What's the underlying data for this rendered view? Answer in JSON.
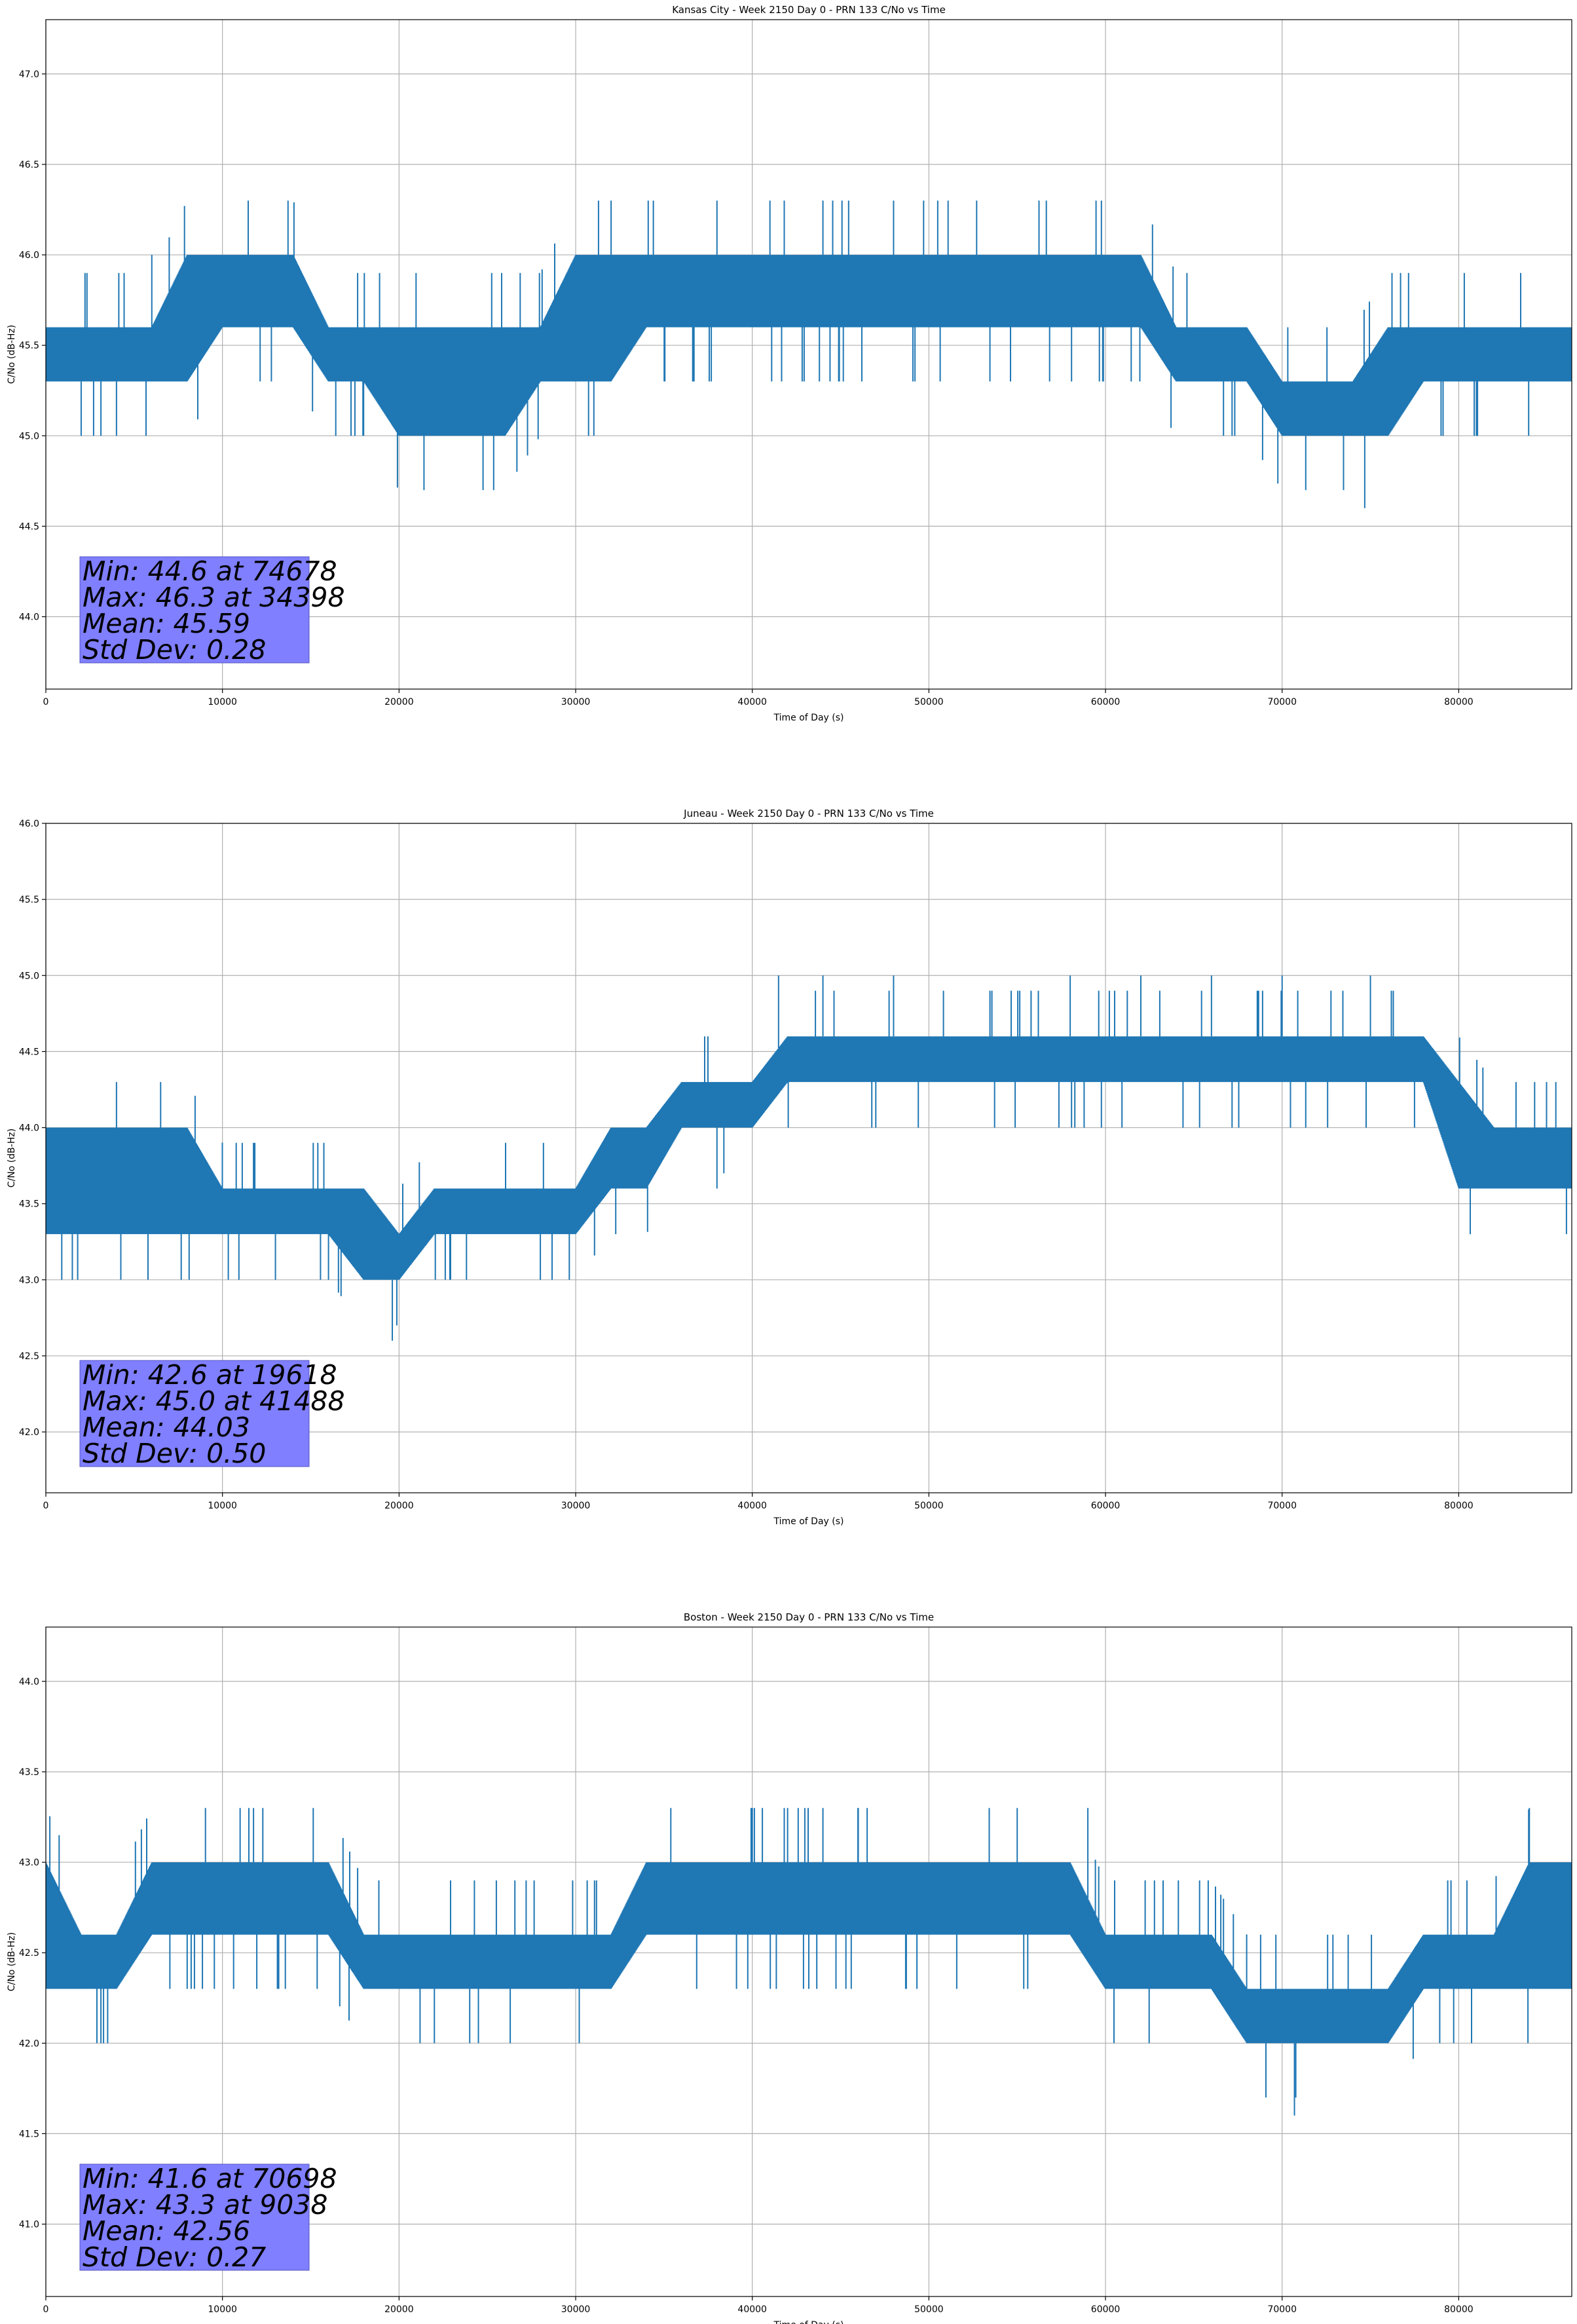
{
  "chart_data": [
    {
      "type": "line",
      "title": "Kansas City - Week 2150 Day 0 - PRN 133 C/No vs Time",
      "xlabel": "Time of Day (s)",
      "ylabel": "C/No (dB-Hz)",
      "xlim": [
        0,
        86400
      ],
      "ylim": [
        43.6,
        47.3
      ],
      "xticks": [
        0,
        10000,
        20000,
        30000,
        40000,
        50000,
        60000,
        70000,
        80000
      ],
      "yticks": [
        44.0,
        44.5,
        45.0,
        45.5,
        46.0,
        46.5,
        47.0
      ],
      "grid": true,
      "series": [
        {
          "name": "C/No",
          "color": "#1f77b4",
          "x": [
            0,
            2000,
            4000,
            6000,
            8000,
            10000,
            12000,
            14000,
            16000,
            18000,
            20000,
            22000,
            24000,
            26000,
            28000,
            30000,
            32000,
            34000,
            36000,
            38000,
            40000,
            42000,
            44000,
            46000,
            48000,
            50000,
            52000,
            54000,
            56000,
            58000,
            60000,
            62000,
            64000,
            66000,
            68000,
            70000,
            72000,
            74000,
            76000,
            78000,
            80000,
            82000,
            84000,
            86400
          ],
          "band_low": [
            45.3,
            45.3,
            45.3,
            45.3,
            45.3,
            45.6,
            45.6,
            45.6,
            45.3,
            45.3,
            45.0,
            45.0,
            45.0,
            45.0,
            45.3,
            45.3,
            45.3,
            45.6,
            45.6,
            45.6,
            45.6,
            45.6,
            45.6,
            45.6,
            45.6,
            45.6,
            45.6,
            45.6,
            45.6,
            45.6,
            45.6,
            45.6,
            45.3,
            45.3,
            45.3,
            45.0,
            45.0,
            45.0,
            45.0,
            45.3,
            45.3,
            45.3,
            45.3,
            45.3
          ],
          "band_high": [
            45.6,
            45.6,
            45.6,
            45.6,
            46.0,
            46.0,
            46.0,
            46.0,
            45.6,
            45.6,
            45.6,
            45.6,
            45.6,
            45.6,
            45.6,
            46.0,
            46.0,
            46.0,
            46.0,
            46.0,
            46.0,
            46.0,
            46.0,
            46.0,
            46.0,
            46.0,
            46.0,
            46.0,
            46.0,
            46.0,
            46.0,
            46.0,
            45.6,
            45.6,
            45.6,
            45.3,
            45.3,
            45.3,
            45.6,
            45.6,
            45.6,
            45.6,
            45.6,
            45.6
          ],
          "spikes": [
            [
              2000,
              45.0
            ],
            [
              4000,
              45.0
            ],
            [
              6000,
              46.0
            ],
            [
              17500,
              45.0
            ],
            [
              34398,
              46.3
            ],
            [
              38000,
              46.3
            ],
            [
              41000,
              46.3
            ],
            [
              44000,
              46.3
            ],
            [
              48000,
              46.3
            ],
            [
              50500,
              46.3
            ],
            [
              74678,
              44.6
            ],
            [
              81000,
              45.0
            ]
          ]
        }
      ],
      "annotation": [
        "Min: 44.6 at 74678",
        "Max: 46.3 at 34398",
        "Mean: 45.59",
        "Std Dev: 0.28"
      ]
    },
    {
      "type": "line",
      "title": "Juneau - Week 2150 Day 0 - PRN 133 C/No vs Time",
      "xlabel": "Time of Day (s)",
      "ylabel": "C/No (dB-Hz)",
      "xlim": [
        0,
        86400
      ],
      "ylim": [
        41.6,
        46.0
      ],
      "xticks": [
        0,
        10000,
        20000,
        30000,
        40000,
        50000,
        60000,
        70000,
        80000
      ],
      "yticks": [
        42.0,
        42.5,
        43.0,
        43.5,
        44.0,
        44.5,
        45.0,
        45.5,
        46.0
      ],
      "grid": true,
      "series": [
        {
          "name": "C/No",
          "color": "#1f77b4",
          "x": [
            0,
            2000,
            4000,
            6000,
            8000,
            10000,
            12000,
            14000,
            16000,
            18000,
            20000,
            22000,
            24000,
            26000,
            28000,
            30000,
            32000,
            34000,
            36000,
            38000,
            40000,
            42000,
            44000,
            46000,
            48000,
            50000,
            52000,
            54000,
            56000,
            58000,
            60000,
            62000,
            64000,
            66000,
            68000,
            70000,
            72000,
            74000,
            76000,
            78000,
            80000,
            82000,
            84000,
            86400
          ],
          "band_low": [
            43.3,
            43.3,
            43.3,
            43.3,
            43.3,
            43.3,
            43.3,
            43.3,
            43.3,
            43.0,
            43.0,
            43.3,
            43.3,
            43.3,
            43.3,
            43.3,
            43.6,
            43.6,
            44.0,
            44.0,
            44.0,
            44.3,
            44.3,
            44.3,
            44.3,
            44.3,
            44.3,
            44.3,
            44.3,
            44.3,
            44.3,
            44.3,
            44.3,
            44.3,
            44.3,
            44.3,
            44.3,
            44.3,
            44.3,
            44.3,
            43.6,
            43.6,
            43.6,
            43.6
          ],
          "band_high": [
            44.0,
            44.0,
            44.0,
            44.0,
            44.0,
            43.6,
            43.6,
            43.6,
            43.6,
            43.6,
            43.3,
            43.6,
            43.6,
            43.6,
            43.6,
            43.6,
            44.0,
            44.0,
            44.3,
            44.3,
            44.3,
            44.6,
            44.6,
            44.6,
            44.6,
            44.6,
            44.6,
            44.6,
            44.6,
            44.6,
            44.6,
            44.6,
            44.6,
            44.6,
            44.6,
            44.6,
            44.6,
            44.6,
            44.6,
            44.6,
            44.3,
            44.0,
            44.0,
            44.0
          ],
          "spikes": [
            [
              1500,
              43.0
            ],
            [
              4000,
              44.3
            ],
            [
              6500,
              44.3
            ],
            [
              13000,
              43.0
            ],
            [
              19618,
              42.6
            ],
            [
              28000,
              43.0
            ],
            [
              38000,
              43.6
            ],
            [
              41488,
              45.0
            ],
            [
              44000,
              45.0
            ],
            [
              48000,
              45.0
            ],
            [
              58000,
              45.0
            ],
            [
              62000,
              45.0
            ],
            [
              66000,
              45.0
            ],
            [
              70000,
              45.0
            ],
            [
              75000,
              45.0
            ],
            [
              81000,
              43.6
            ]
          ]
        }
      ],
      "annotation": [
        "Min: 42.6 at 19618",
        "Max: 45.0 at 41488",
        "Mean: 44.03",
        "Std Dev: 0.50"
      ]
    },
    {
      "type": "line",
      "title": "Boston - Week 2150 Day 0 - PRN 133 C/No vs Time",
      "xlabel": "Time of Day (s)",
      "ylabel": "C/No (dB-Hz)",
      "xlim": [
        0,
        86400
      ],
      "ylim": [
        40.6,
        44.3
      ],
      "xticks": [
        0,
        10000,
        20000,
        30000,
        40000,
        50000,
        60000,
        70000,
        80000
      ],
      "yticks": [
        41.0,
        41.5,
        42.0,
        42.5,
        43.0,
        43.5,
        44.0
      ],
      "grid": true,
      "series": [
        {
          "name": "C/No",
          "color": "#1f77b4",
          "x": [
            0,
            2000,
            4000,
            6000,
            8000,
            10000,
            12000,
            14000,
            16000,
            18000,
            20000,
            22000,
            24000,
            26000,
            28000,
            30000,
            32000,
            34000,
            36000,
            38000,
            40000,
            42000,
            44000,
            46000,
            48000,
            50000,
            52000,
            54000,
            56000,
            58000,
            60000,
            62000,
            64000,
            66000,
            68000,
            70000,
            72000,
            74000,
            76000,
            78000,
            80000,
            82000,
            84000,
            86400
          ],
          "band_low": [
            42.3,
            42.3,
            42.3,
            42.6,
            42.6,
            42.6,
            42.6,
            42.6,
            42.6,
            42.3,
            42.3,
            42.3,
            42.3,
            42.3,
            42.3,
            42.3,
            42.3,
            42.6,
            42.6,
            42.6,
            42.6,
            42.6,
            42.6,
            42.6,
            42.6,
            42.6,
            42.6,
            42.6,
            42.6,
            42.6,
            42.3,
            42.3,
            42.3,
            42.3,
            42.0,
            42.0,
            42.0,
            42.0,
            42.0,
            42.3,
            42.3,
            42.3,
            42.3,
            42.3
          ],
          "band_high": [
            43.0,
            42.6,
            42.6,
            43.0,
            43.0,
            43.0,
            43.0,
            43.0,
            43.0,
            42.6,
            42.6,
            42.6,
            42.6,
            42.6,
            42.6,
            42.6,
            42.6,
            43.0,
            43.0,
            43.0,
            43.0,
            43.0,
            43.0,
            43.0,
            43.0,
            43.0,
            43.0,
            43.0,
            43.0,
            43.0,
            42.6,
            42.6,
            42.6,
            42.6,
            42.3,
            42.3,
            42.3,
            42.3,
            42.3,
            42.6,
            42.6,
            42.6,
            43.0,
            43.0
          ],
          "spikes": [
            [
              3500,
              42.0
            ],
            [
              9038,
              43.3
            ],
            [
              11000,
              43.3
            ],
            [
              22000,
              42.0
            ],
            [
              24000,
              42.0
            ],
            [
              40000,
              43.3
            ],
            [
              42000,
              43.3
            ],
            [
              44000,
              43.3
            ],
            [
              46000,
              43.3
            ],
            [
              55000,
              43.3
            ],
            [
              59000,
              43.3
            ],
            [
              70698,
              41.6
            ],
            [
              76000,
              42.0
            ],
            [
              84000,
              43.3
            ]
          ]
        }
      ],
      "annotation": [
        "Min: 41.6 at 70698",
        "Max: 43.3 at 9038",
        "Mean: 42.56",
        "Std Dev: 0.27"
      ]
    }
  ]
}
